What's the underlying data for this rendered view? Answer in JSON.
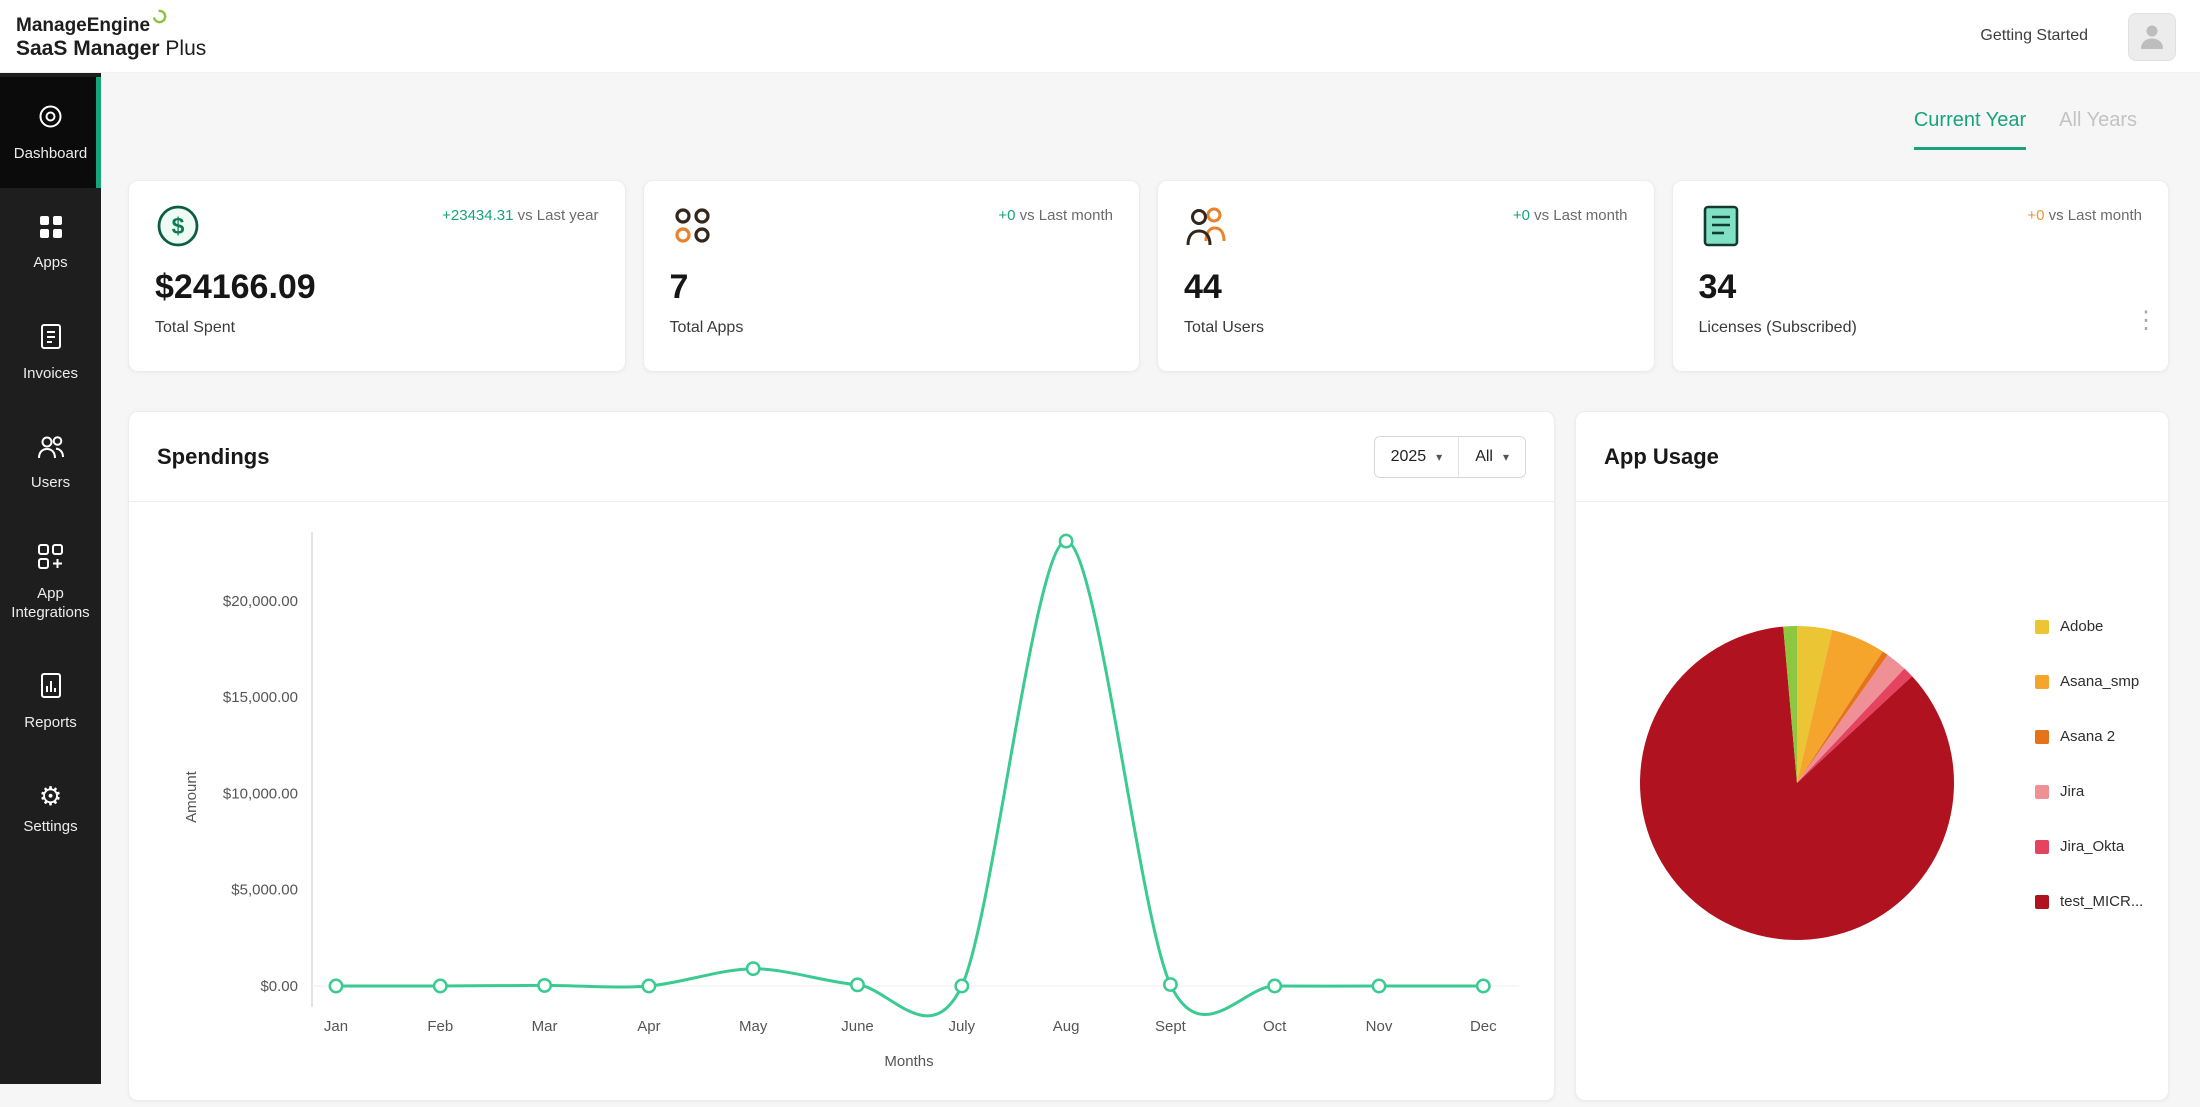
{
  "colors": {
    "accent": "#16a47a"
  },
  "header": {
    "logo_top": "ManageEngine",
    "logo_bottom_bold": "SaaS Manager",
    "logo_bottom_light": " Plus",
    "getting_started": "Getting Started"
  },
  "sidebar": {
    "items": [
      {
        "label": "Dashboard",
        "icon": "dashboard-icon",
        "active": true
      },
      {
        "label": "Apps",
        "icon": "apps-icon",
        "active": false
      },
      {
        "label": "Invoices",
        "icon": "invoices-icon",
        "active": false
      },
      {
        "label": "Users",
        "icon": "users-icon",
        "active": false
      },
      {
        "label": "App Integrations",
        "icon": "app-integrations-icon",
        "active": false
      },
      {
        "label": "Reports",
        "icon": "reports-icon",
        "active": false
      },
      {
        "label": "Settings",
        "icon": "settings-icon",
        "active": false
      }
    ]
  },
  "tabs": {
    "current_year": "Current Year",
    "all_years": "All Years"
  },
  "stat_cards": [
    {
      "icon": "dollar-circle-icon",
      "delta": "+23434.31",
      "delta_suffix": " vs Last year",
      "delta_color": "#16a47a",
      "value": "$24166.09",
      "label": "Total Spent"
    },
    {
      "icon": "apps-grid-icon",
      "delta": "+0",
      "delta_suffix": " vs Last month",
      "delta_color": "#16a47a",
      "value": "7",
      "label": "Total Apps"
    },
    {
      "icon": "two-users-icon",
      "delta": "+0",
      "delta_suffix": " vs Last month",
      "delta_color": "#16a47a",
      "value": "44",
      "label": "Total Users"
    },
    {
      "icon": "license-doc-icon",
      "delta": "+0",
      "delta_suffix": " vs Last month",
      "delta_color": "#f09536",
      "value": "34",
      "label": "Licenses (Subscribed)"
    }
  ],
  "spendings": {
    "year_filter": "2025",
    "app_filter": "All"
  },
  "chart_data": [
    {
      "type": "line",
      "title": "Spendings",
      "x": [
        "Jan",
        "Feb",
        "Mar",
        "Apr",
        "May",
        "June",
        "July",
        "Aug",
        "Sept",
        "Oct",
        "Nov",
        "Dec"
      ],
      "values": [
        0,
        0,
        30,
        0,
        900,
        60,
        0,
        23100,
        76.09,
        0,
        0,
        0
      ],
      "xlabel": "Months",
      "ylabel": "Amount",
      "yticks": [
        0,
        5000,
        10000,
        15000,
        20000
      ],
      "ytick_labels": [
        "$0.00",
        "$5,000.00",
        "$10,000.00",
        "$15,000.00",
        "$20,000.00"
      ],
      "ylim": [
        -1800,
        23800
      ],
      "grid": false,
      "line_color": "#3bcb92",
      "marker": "circle-open"
    },
    {
      "type": "pie",
      "title": "App Usage",
      "legend_position": "right",
      "slices": [
        {
          "label": "Adobe",
          "value": 3.6,
          "color": "#ecc534"
        },
        {
          "label": "Asana_smp",
          "value": 5.6,
          "color": "#f5a42c"
        },
        {
          "label": "Asana 2",
          "value": 0.6,
          "color": "#e5731a"
        },
        {
          "label": "Jira",
          "value": 2.2,
          "color": "#ef8f96"
        },
        {
          "label": "Jira_Okta",
          "value": 1.1,
          "color": "#e44460"
        },
        {
          "label": "test_MICR...",
          "value": 85.5,
          "color": "#b1121f"
        },
        {
          "label": "",
          "value": 1.4,
          "color": "#8dc63f"
        }
      ]
    }
  ]
}
